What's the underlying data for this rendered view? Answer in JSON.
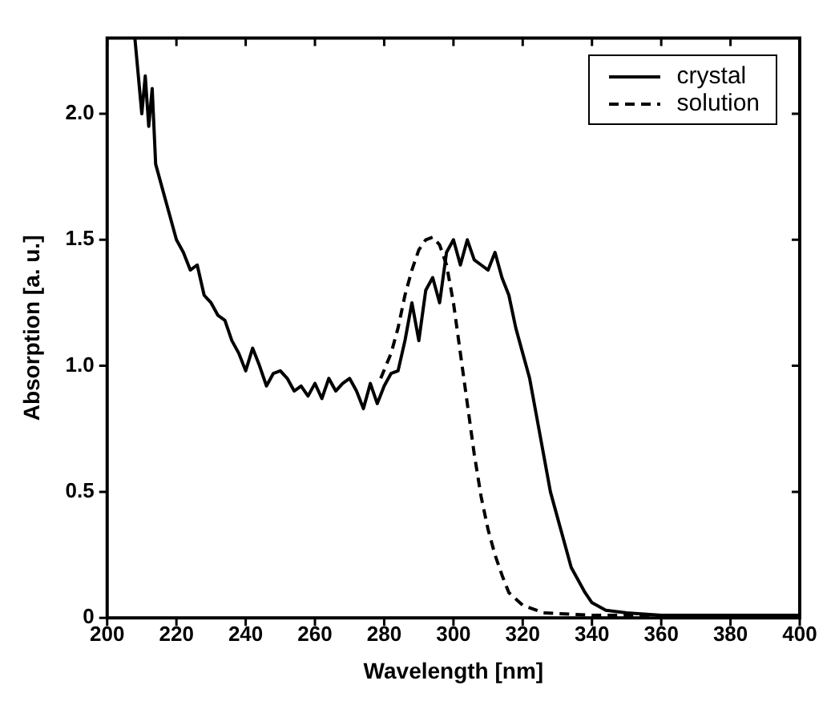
{
  "chart_data": {
    "type": "line",
    "xlabel": "Wavelength [nm]",
    "ylabel": "Absorption [a. u.]",
    "xlim": [
      200,
      400
    ],
    "ylim": [
      0,
      2.3
    ],
    "xticks": [
      200,
      220,
      240,
      260,
      280,
      300,
      320,
      340,
      360,
      380,
      400
    ],
    "yticks": [
      0,
      0.5,
      {
        "value": 1,
        "label": "1.0"
      },
      1.5,
      {
        "value": 2,
        "label": "2.0"
      }
    ],
    "grid": false,
    "legend": "top right",
    "marker": "none",
    "series": [
      {
        "name": "crystal",
        "color": "#000000",
        "line_style": "solid",
        "x": [
          208,
          210,
          211,
          212,
          213,
          214,
          216,
          218,
          220,
          222,
          224,
          226,
          228,
          230,
          232,
          234,
          236,
          238,
          240,
          242,
          244,
          246,
          248,
          250,
          252,
          254,
          256,
          258,
          260,
          262,
          264,
          266,
          268,
          270,
          272,
          274,
          276,
          278,
          280,
          282,
          284,
          286,
          288,
          290,
          292,
          294,
          296,
          298,
          300,
          302,
          304,
          306,
          308,
          310,
          312,
          314,
          316,
          318,
          320,
          322,
          324,
          326,
          328,
          330,
          332,
          334,
          336,
          338,
          340,
          344,
          350,
          360,
          380,
          400
        ],
        "values": [
          2.3,
          2.0,
          2.15,
          1.95,
          2.1,
          1.8,
          1.7,
          1.6,
          1.5,
          1.45,
          1.38,
          1.4,
          1.28,
          1.25,
          1.2,
          1.18,
          1.1,
          1.05,
          0.98,
          1.07,
          1.0,
          0.92,
          0.97,
          0.98,
          0.95,
          0.9,
          0.92,
          0.88,
          0.93,
          0.87,
          0.95,
          0.9,
          0.93,
          0.95,
          0.9,
          0.83,
          0.93,
          0.85,
          0.92,
          0.97,
          0.98,
          1.1,
          1.25,
          1.1,
          1.3,
          1.35,
          1.25,
          1.45,
          1.5,
          1.4,
          1.5,
          1.42,
          1.4,
          1.38,
          1.45,
          1.35,
          1.28,
          1.15,
          1.05,
          0.95,
          0.8,
          0.65,
          0.5,
          0.4,
          0.3,
          0.2,
          0.15,
          0.1,
          0.06,
          0.03,
          0.02,
          0.01,
          0.01,
          0.01
        ]
      },
      {
        "name": "solution",
        "color": "#000000",
        "line_style": "dashed",
        "x": [
          279,
          282,
          284,
          286,
          288,
          290,
          292,
          294,
          296,
          298,
          300,
          302,
          304,
          306,
          308,
          310,
          312,
          314,
          316,
          320,
          326,
          340,
          360,
          400
        ],
        "values": [
          0.95,
          1.05,
          1.15,
          1.28,
          1.38,
          1.46,
          1.5,
          1.51,
          1.48,
          1.4,
          1.25,
          1.05,
          0.85,
          0.65,
          0.48,
          0.35,
          0.25,
          0.17,
          0.1,
          0.05,
          0.02,
          0.01,
          0.01,
          0.01
        ]
      }
    ]
  }
}
